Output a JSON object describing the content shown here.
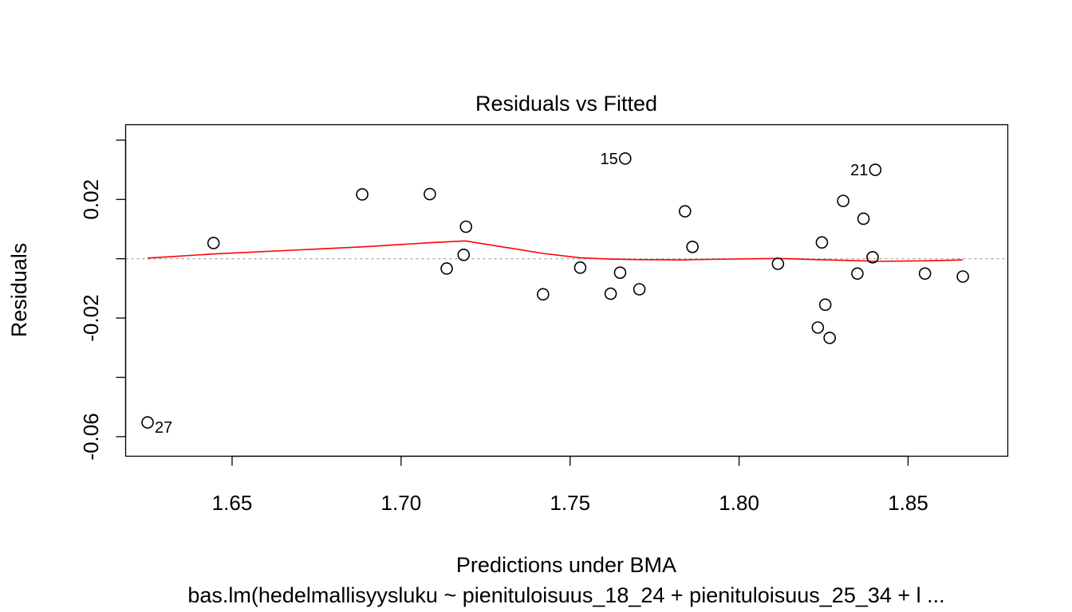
{
  "chart_data": {
    "type": "scatter",
    "title": "Residuals vs Fitted",
    "xlabel": "Predictions under BMA",
    "subtitle": "bas.lm(hedelmallisyysluku ~ pienituloisuus_18_24 + pienituloisuus_25_34 + l ...",
    "ylabel": "Residuals",
    "xlim": [
      1.6185,
      1.8795
    ],
    "ylim": [
      -0.0666,
      0.0452
    ],
    "x_ticks": [
      1.65,
      1.7,
      1.75,
      1.8,
      1.85
    ],
    "x_tick_labels": [
      "1.65",
      "1.70",
      "1.75",
      "1.80",
      "1.85"
    ],
    "y_ticks": [
      -0.06,
      -0.04,
      -0.02,
      0,
      0.02,
      0.04
    ],
    "y_tick_labels": [
      "-0.06",
      "",
      "-0.02",
      "",
      "0.02",
      ""
    ],
    "reference_line": {
      "y": 0,
      "style": "dotted",
      "color": "#aaaaaa"
    },
    "points": [
      {
        "x": 1.625,
        "y": -0.0552,
        "label": "27"
      },
      {
        "x": 1.6445,
        "y": 0.0053
      },
      {
        "x": 1.6885,
        "y": 0.0217
      },
      {
        "x": 1.7085,
        "y": 0.0218
      },
      {
        "x": 1.7135,
        "y": -0.0033
      },
      {
        "x": 1.7185,
        "y": 0.0013
      },
      {
        "x": 1.7192,
        "y": 0.0108
      },
      {
        "x": 1.742,
        "y": -0.012
      },
      {
        "x": 1.753,
        "y": -0.003
      },
      {
        "x": 1.762,
        "y": -0.0118
      },
      {
        "x": 1.7648,
        "y": -0.0047
      },
      {
        "x": 1.7663,
        "y": 0.0338,
        "label": "15"
      },
      {
        "x": 1.7705,
        "y": -0.0103
      },
      {
        "x": 1.784,
        "y": 0.016
      },
      {
        "x": 1.7862,
        "y": 0.004
      },
      {
        "x": 1.8115,
        "y": -0.0017
      },
      {
        "x": 1.8233,
        "y": -0.0232
      },
      {
        "x": 1.8245,
        "y": 0.0055
      },
      {
        "x": 1.8255,
        "y": -0.0155
      },
      {
        "x": 1.8268,
        "y": -0.0267
      },
      {
        "x": 1.8308,
        "y": 0.0195
      },
      {
        "x": 1.835,
        "y": -0.005
      },
      {
        "x": 1.8368,
        "y": 0.0135
      },
      {
        "x": 1.8395,
        "y": 0.0005
      },
      {
        "x": 1.8403,
        "y": 0.03,
        "label": "21"
      },
      {
        "x": 1.855,
        "y": -0.005
      },
      {
        "x": 1.8662,
        "y": -0.006
      }
    ],
    "smooth_line": {
      "color": "#ff0000",
      "x": [
        1.625,
        1.6445,
        1.6885,
        1.7085,
        1.7185,
        1.7192,
        1.742,
        1.753,
        1.762,
        1.7705,
        1.784,
        1.7862,
        1.8115,
        1.8233,
        1.8368,
        1.8403,
        1.855,
        1.8662
      ],
      "y": [
        0.0002,
        0.0016,
        0.004,
        0.0054,
        0.006,
        0.006,
        0.0018,
        0.0003,
        -0.0001,
        -0.0003,
        -0.0004,
        -0.0003,
        0.0001,
        -0.0003,
        -0.0007,
        -0.0009,
        -0.0007,
        -0.0004
      ]
    }
  }
}
